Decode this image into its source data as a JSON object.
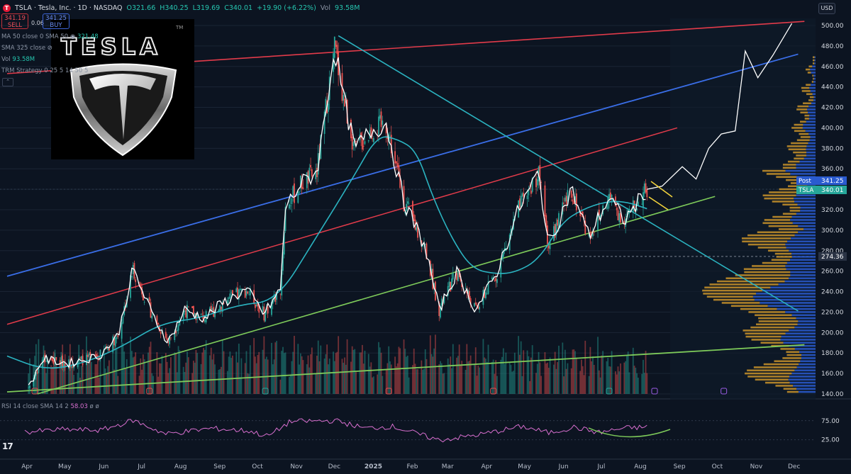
{
  "header": {
    "symbol": "TSLA · Tesla, Inc. · 1D · NASDAQ",
    "open": "O321.66",
    "high": "H340.25",
    "low": "L319.69",
    "close": "C340.01",
    "change": "+19.90 (+6.22%)",
    "vol_label": "Vol",
    "vol_value": "93.58M",
    "logo_letter": "T"
  },
  "trade": {
    "sell_price": "341.19",
    "sell_label": "SELL",
    "spread": "0.06",
    "buy_price": "341.25",
    "buy_label": "BUY"
  },
  "indicators": {
    "ma50": "MA 50 close 0 SMA 50",
    "ma50_value": "321.48",
    "sma325": "SMA 325 close",
    "vol": "Vol",
    "vol_value": "93.58M",
    "trm": "TRM Strategy 0 25 5 14 50 5"
  },
  "currency": "USD",
  "logo_text": "TESLA",
  "logo_tm": "TM",
  "price_axis": [
    "500.00",
    "480.00",
    "460.00",
    "440.00",
    "420.00",
    "400.00",
    "380.00",
    "360.00",
    "340.00",
    "320.00",
    "300.00",
    "280.00",
    "260.00",
    "240.00",
    "220.00",
    "200.00",
    "180.00",
    "160.00",
    "140.00"
  ],
  "price_tags": {
    "post_label": "Post",
    "post_value": "341.25",
    "last_label": "TSLA",
    "last_value": "340.01",
    "level_value": "274.36"
  },
  "time_axis": [
    "Apr",
    "May",
    "Jun",
    "Jul",
    "Aug",
    "Sep",
    "Oct",
    "Nov",
    "Dec",
    "2025",
    "Feb",
    "Mar",
    "Apr",
    "May",
    "Jun",
    "Jul",
    "Aug",
    "Sep",
    "Oct",
    "Nov",
    "Dec"
  ],
  "rsi": {
    "label": "RSI 14 close SMA 14 2",
    "value": "58.03",
    "tail": "ø ø",
    "axis": [
      "75.00",
      "25.00"
    ]
  },
  "colors": {
    "background": "#0c1421",
    "candle_up": "#26a69a",
    "candle_down": "#ef5350",
    "sma50": "#2bb3c0",
    "projection": "#ffffff",
    "channel_red": "#e23b4a",
    "channel_blue": "#3a6ee8",
    "support_green": "#7ecb5a",
    "downtrend_cyan": "#2bb3c0",
    "volume_profile_up": "#c8922a",
    "volume_profile_down": "#2a5bd0",
    "rsi_line": "#d86fcf",
    "rsi_curve": "#7ecb5a",
    "flag": "#f2d23c"
  },
  "chart_data": {
    "type": "candlestick",
    "symbol": "TSLA",
    "timeframe": "1D",
    "y_axis_range": [
      140,
      500
    ],
    "x_axis_range": [
      "2024-04",
      "2025-12"
    ],
    "price_series": {
      "x": [
        "2024-04",
        "2024-05",
        "2024-06",
        "2024-07",
        "2024-08",
        "2024-09",
        "2024-10",
        "2024-11",
        "2024-12",
        "2025-01",
        "2025-02",
        "2025-03",
        "2025-04",
        "2025-05",
        "2025-06",
        "2025-07",
        "2025-08"
      ],
      "y": [
        150,
        175,
        180,
        260,
        205,
        235,
        220,
        340,
        455,
        420,
        310,
        235,
        255,
        345,
        320,
        315,
        340
      ]
    },
    "price_line_points": [
      [
        "2024-04-18",
        146
      ],
      [
        "2024-04-29",
        174
      ],
      [
        "2024-05-20",
        170
      ],
      [
        "2024-06-13",
        177
      ],
      [
        "2024-06-28",
        197
      ],
      [
        "2024-07-10",
        262
      ],
      [
        "2024-07-25",
        218
      ],
      [
        "2024-08-07",
        191
      ],
      [
        "2024-08-20",
        222
      ],
      [
        "2024-09-05",
        214
      ],
      [
        "2024-09-18",
        228
      ],
      [
        "2024-10-08",
        242
      ],
      [
        "2024-10-22",
        218
      ],
      [
        "2024-11-04",
        242
      ],
      [
        "2024-11-08",
        322
      ],
      [
        "2024-11-20",
        345
      ],
      [
        "2024-12-03",
        357
      ],
      [
        "2024-12-17",
        479
      ],
      [
        "2024-12-24",
        430
      ],
      [
        "2025-01-02",
        379
      ],
      [
        "2025-01-15",
        397
      ],
      [
        "2025-01-27",
        404
      ],
      [
        "2025-02-10",
        328
      ],
      [
        "2025-02-27",
        283
      ],
      [
        "2025-03-10",
        222
      ],
      [
        "2025-03-24",
        259
      ],
      [
        "2025-04-08",
        222
      ],
      [
        "2025-04-24",
        256
      ],
      [
        "2025-05-12",
        320
      ],
      [
        "2025-05-28",
        356
      ],
      [
        "2025-06-05",
        285
      ],
      [
        "2025-06-23",
        340
      ],
      [
        "2025-07-07",
        294
      ],
      [
        "2025-07-23",
        332
      ],
      [
        "2025-08-04",
        309
      ],
      [
        "2025-08-22",
        340
      ]
    ],
    "projection_points": [
      [
        "2025-08-22",
        340
      ],
      [
        "2025-09-03",
        343
      ],
      [
        "2025-09-19",
        362
      ],
      [
        "2025-09-30",
        350
      ],
      [
        "2025-10-10",
        380
      ],
      [
        "2025-10-20",
        394
      ],
      [
        "2025-10-31",
        397
      ],
      [
        "2025-11-08",
        475
      ],
      [
        "2025-11-18",
        449
      ],
      [
        "2025-11-30",
        471
      ],
      [
        "2025-12-15",
        502
      ]
    ],
    "sma50_points": [
      [
        "2024-04-01",
        177
      ],
      [
        "2024-05-01",
        163
      ],
      [
        "2024-06-01",
        170
      ],
      [
        "2024-07-01",
        186
      ],
      [
        "2024-08-01",
        209
      ],
      [
        "2024-09-01",
        214
      ],
      [
        "2024-10-01",
        227
      ],
      [
        "2024-11-01",
        231
      ],
      [
        "2024-12-01",
        290
      ],
      [
        "2025-01-01",
        352
      ],
      [
        "2025-01-20",
        393
      ],
      [
        "2025-02-05",
        389
      ],
      [
        "2025-02-20",
        378
      ],
      [
        "2025-03-05",
        332
      ],
      [
        "2025-03-20",
        292
      ],
      [
        "2025-04-05",
        262
      ],
      [
        "2025-04-25",
        257
      ],
      [
        "2025-05-10",
        259
      ],
      [
        "2025-05-28",
        271
      ],
      [
        "2025-06-15",
        307
      ],
      [
        "2025-07-01",
        320
      ],
      [
        "2025-07-20",
        328
      ],
      [
        "2025-08-05",
        328
      ],
      [
        "2025-08-22",
        321
      ]
    ],
    "trendlines": [
      {
        "name": "upper red",
        "from": [
          "2024-04-01",
          453
        ],
        "to": [
          "2025-12-25",
          504
        ]
      },
      {
        "name": "red channel",
        "from": [
          "2024-04-01",
          208
        ],
        "to": [
          "2025-09-15",
          400
        ]
      },
      {
        "name": "blue channel",
        "from": [
          "2024-04-01",
          255
        ],
        "to": [
          "2025-12-20",
          472
        ]
      },
      {
        "name": "green support",
        "from": [
          "2024-04-25",
          140
        ],
        "to": [
          "2025-10-15",
          333
        ]
      },
      {
        "name": "cyan downtrend",
        "from": [
          "2024-12-20",
          490
        ],
        "to": [
          "2025-12-20",
          221
        ]
      },
      {
        "name": "long-term green",
        "from": [
          "2024-04-01",
          142
        ],
        "to": [
          "2025-12-25",
          188
        ]
      }
    ],
    "horizontal_levels": [
      274.36,
      341.25
    ],
    "rsi": {
      "value": 58.03,
      "levels": [
        75,
        25
      ],
      "points": [
        [
          "2024-04-15",
          45
        ],
        [
          "2024-05-15",
          52
        ],
        [
          "2024-06-15",
          50
        ],
        [
          "2024-07-10",
          76
        ],
        [
          "2024-08-05",
          40
        ],
        [
          "2024-09-10",
          55
        ],
        [
          "2024-10-10",
          48
        ],
        [
          "2024-10-25",
          34
        ],
        [
          "2024-11-12",
          73
        ],
        [
          "2024-12-18",
          75
        ],
        [
          "2025-01-10",
          55
        ],
        [
          "2025-02-01",
          60
        ],
        [
          "2025-03-10",
          24
        ],
        [
          "2025-04-10",
          38
        ],
        [
          "2025-05-15",
          60
        ],
        [
          "2025-06-05",
          43
        ],
        [
          "2025-06-25",
          58
        ],
        [
          "2025-07-15",
          44
        ],
        [
          "2025-08-05",
          56
        ],
        [
          "2025-08-22",
          58
        ]
      ]
    }
  }
}
